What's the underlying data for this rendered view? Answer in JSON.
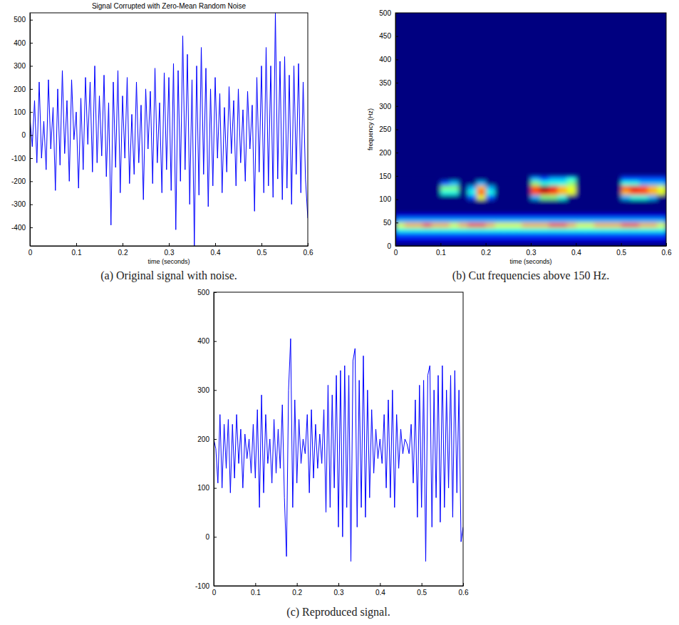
{
  "chart_data": [
    {
      "type": "line",
      "title": "Signal Corrupted with Zero-Mean Random Noise",
      "x_label": "time (seconds)",
      "caption": "(a) Original signal with noise.",
      "color": "#0000ff",
      "grid": false,
      "xlim": [
        0,
        0.6
      ],
      "ylim": [
        -480,
        530
      ],
      "xticks": [
        0,
        0.1,
        0.2,
        0.3,
        0.4,
        0.5,
        0.6
      ],
      "yticks": [
        -400,
        -300,
        -200,
        -100,
        0,
        100,
        200,
        300,
        400,
        500
      ],
      "x": [
        0,
        0.005,
        0.01,
        0.015,
        0.02,
        0.025,
        0.03,
        0.035,
        0.04,
        0.045,
        0.05,
        0.055,
        0.06,
        0.065,
        0.07,
        0.075,
        0.08,
        0.085,
        0.09,
        0.095,
        0.1,
        0.105,
        0.11,
        0.115,
        0.12,
        0.125,
        0.13,
        0.135,
        0.14,
        0.145,
        0.15,
        0.155,
        0.16,
        0.165,
        0.17,
        0.175,
        0.18,
        0.185,
        0.19,
        0.195,
        0.2,
        0.205,
        0.21,
        0.215,
        0.22,
        0.225,
        0.23,
        0.235,
        0.24,
        0.245,
        0.25,
        0.255,
        0.26,
        0.265,
        0.27,
        0.275,
        0.28,
        0.285,
        0.29,
        0.295,
        0.3,
        0.305,
        0.31,
        0.315,
        0.32,
        0.325,
        0.33,
        0.335,
        0.34,
        0.345,
        0.35,
        0.355,
        0.36,
        0.365,
        0.37,
        0.375,
        0.38,
        0.385,
        0.39,
        0.395,
        0.4,
        0.405,
        0.41,
        0.415,
        0.42,
        0.425,
        0.43,
        0.435,
        0.44,
        0.445,
        0.45,
        0.455,
        0.46,
        0.465,
        0.47,
        0.475,
        0.48,
        0.485,
        0.49,
        0.495,
        0.5,
        0.505,
        0.51,
        0.515,
        0.52,
        0.525,
        0.53,
        0.535,
        0.54,
        0.545,
        0.55,
        0.555,
        0.56,
        0.565,
        0.57,
        0.575,
        0.58,
        0.585,
        0.59,
        0.595,
        0.6
      ],
      "values": [
        80,
        -50,
        150,
        -120,
        230,
        -100,
        60,
        -150,
        240,
        -60,
        120,
        -240,
        200,
        -130,
        280,
        -80,
        150,
        -200,
        240,
        -20,
        100,
        -230,
        160,
        -150,
        250,
        -40,
        230,
        -160,
        300,
        -120,
        170,
        -90,
        260,
        -180,
        140,
        -390,
        230,
        -140,
        280,
        -250,
        170,
        -100,
        250,
        -210,
        90,
        -170,
        230,
        -120,
        130,
        -280,
        200,
        -60,
        190,
        -210,
        290,
        -120,
        140,
        -250,
        270,
        -150,
        250,
        -240,
        310,
        -410,
        280,
        -200,
        430,
        -150,
        350,
        -300,
        240,
        -480,
        300,
        -260,
        380,
        -170,
        290,
        -310,
        200,
        -220,
        250,
        -100,
        180,
        -250,
        120,
        -160,
        210,
        -80,
        150,
        -220,
        200,
        -120,
        110,
        -200,
        190,
        -60,
        130,
        -330,
        250,
        -160,
        300,
        -250,
        380,
        -220,
        300,
        -270,
        530,
        -190,
        320,
        -280,
        340,
        -230,
        260,
        -300,
        300,
        -170,
        310,
        -250,
        230,
        -190,
        -360
      ]
    },
    {
      "type": "heatmap",
      "x_label": "time (seconds)",
      "y_label": "frequency (Hz)",
      "caption": "(b) Cut frequencies above 150 Hz.",
      "grid": false,
      "xlim": [
        0,
        0.6
      ],
      "ylim": [
        0,
        500
      ],
      "xticks": [
        0,
        0.1,
        0.2,
        0.3,
        0.4,
        0.5,
        0.6
      ],
      "yticks": [
        0,
        50,
        100,
        150,
        200,
        250,
        300,
        350,
        400,
        450,
        500
      ],
      "zlim": [
        0,
        10
      ],
      "x_bins": [
        0,
        0.02,
        0.04,
        0.06,
        0.08,
        0.1,
        0.12,
        0.14,
        0.16,
        0.18,
        0.2,
        0.22,
        0.24,
        0.26,
        0.28,
        0.3,
        0.32,
        0.34,
        0.36,
        0.38,
        0.4,
        0.42,
        0.44,
        0.46,
        0.48,
        0.5,
        0.52,
        0.54,
        0.56,
        0.58,
        0.6
      ],
      "y_bins": [
        0,
        10,
        20,
        30,
        40,
        50,
        60,
        70,
        80,
        90,
        100,
        110,
        120,
        130,
        140,
        150
      ],
      "cells": [
        [
          0,
          0,
          0,
          0,
          0,
          0,
          0,
          0,
          0,
          0,
          0,
          0,
          0,
          0,
          0,
          0,
          0,
          0,
          0,
          0,
          0,
          0,
          0,
          0,
          0,
          0,
          0,
          0,
          0,
          0
        ],
        [
          1,
          1,
          1,
          1,
          1,
          1,
          1,
          1,
          1,
          1,
          1,
          1,
          1,
          1,
          1,
          1,
          1,
          1,
          1,
          1,
          1,
          1,
          1,
          1,
          1,
          1,
          1,
          1,
          1,
          1
        ],
        [
          2,
          2,
          2,
          2,
          2,
          2,
          2,
          2,
          2,
          2,
          2,
          2,
          2,
          2,
          2,
          2,
          2,
          2,
          2,
          2,
          2,
          2,
          2,
          2,
          2,
          2,
          2,
          2,
          2,
          2
        ],
        [
          4,
          4,
          4,
          4,
          4,
          4,
          4,
          4,
          4,
          4,
          4,
          4,
          4,
          4,
          4,
          4,
          4,
          4,
          4,
          4,
          4,
          4,
          4,
          4,
          4,
          4,
          4,
          4,
          4,
          4
        ],
        [
          6,
          7,
          7,
          8,
          7,
          7,
          6,
          7,
          8,
          8,
          7,
          6,
          6,
          6,
          7,
          7,
          7,
          8,
          8,
          7,
          6,
          6,
          7,
          7,
          7,
          8,
          8,
          7,
          7,
          6
        ],
        [
          3,
          3,
          3,
          3,
          3,
          3,
          3,
          3,
          3,
          3,
          3,
          3,
          3,
          3,
          3,
          3,
          3,
          3,
          3,
          3,
          3,
          3,
          3,
          3,
          3,
          3,
          3,
          3,
          3,
          3
        ],
        [
          1,
          1,
          1,
          1,
          1,
          1,
          1,
          1,
          1,
          1,
          1,
          1,
          1,
          1,
          1,
          1,
          1,
          1,
          1,
          1,
          1,
          1,
          1,
          1,
          1,
          1,
          1,
          1,
          1,
          1
        ],
        [
          0,
          0,
          0,
          0,
          0,
          0,
          0,
          0,
          0,
          0,
          0,
          0,
          0,
          0,
          0,
          0,
          0,
          0,
          0,
          0,
          0,
          0,
          0,
          0,
          0,
          0,
          0,
          0,
          0,
          0
        ],
        [
          0,
          0,
          0,
          0,
          0,
          0,
          0,
          0,
          0,
          0,
          0,
          0,
          0,
          0,
          0,
          0,
          0,
          0,
          0,
          0,
          0,
          0,
          0,
          0,
          0,
          0,
          0,
          0,
          0,
          0
        ],
        [
          0,
          0,
          0,
          0,
          0,
          0,
          0,
          0,
          0,
          0,
          0,
          0,
          0,
          0,
          0,
          0,
          0,
          0,
          0,
          0,
          0,
          0,
          0,
          0,
          0,
          0,
          0,
          0,
          0,
          0
        ],
        [
          0,
          0,
          0,
          0,
          0,
          0,
          0,
          0,
          2,
          6,
          2,
          0,
          0,
          0,
          0,
          3,
          5,
          5,
          4,
          0,
          0,
          0,
          0,
          0,
          0,
          3,
          4,
          4,
          3,
          0
        ],
        [
          0,
          0,
          0,
          0,
          0,
          4,
          4,
          0,
          4,
          8,
          4,
          0,
          0,
          0,
          0,
          8,
          9,
          8,
          7,
          6,
          0,
          0,
          0,
          0,
          0,
          7,
          8,
          8,
          7,
          6
        ],
        [
          0,
          0,
          0,
          0,
          0,
          5,
          5,
          0,
          3,
          7,
          3,
          0,
          0,
          0,
          0,
          8,
          10,
          9,
          7,
          6,
          0,
          0,
          0,
          0,
          0,
          8,
          9,
          8,
          7,
          6
        ],
        [
          0,
          0,
          0,
          0,
          0,
          2,
          3,
          0,
          0,
          3,
          0,
          0,
          0,
          0,
          0,
          5,
          4,
          4,
          4,
          5,
          0,
          0,
          0,
          0,
          0,
          4,
          4,
          3,
          3,
          3
        ],
        [
          0,
          0,
          0,
          0,
          0,
          0,
          0,
          0,
          0,
          0,
          0,
          0,
          0,
          0,
          0,
          3,
          2,
          3,
          3,
          4,
          0,
          0,
          0,
          0,
          0,
          2,
          2,
          2,
          2,
          2
        ]
      ]
    },
    {
      "type": "line",
      "caption": "(c) Reproduced signal.",
      "color": "#0000ff",
      "grid": false,
      "xlim": [
        0,
        0.6
      ],
      "ylim": [
        -100,
        500
      ],
      "xticks": [
        0,
        0.1,
        0.2,
        0.3,
        0.4,
        0.5,
        0.6
      ],
      "yticks": [
        -100,
        0,
        100,
        200,
        300,
        400,
        500
      ],
      "x": [
        0,
        0.005,
        0.01,
        0.015,
        0.02,
        0.025,
        0.03,
        0.035,
        0.04,
        0.045,
        0.05,
        0.055,
        0.06,
        0.065,
        0.07,
        0.075,
        0.08,
        0.085,
        0.09,
        0.095,
        0.1,
        0.105,
        0.11,
        0.115,
        0.12,
        0.125,
        0.13,
        0.135,
        0.14,
        0.145,
        0.15,
        0.155,
        0.16,
        0.165,
        0.17,
        0.175,
        0.18,
        0.185,
        0.19,
        0.195,
        0.2,
        0.205,
        0.21,
        0.215,
        0.22,
        0.225,
        0.23,
        0.235,
        0.24,
        0.245,
        0.25,
        0.255,
        0.26,
        0.265,
        0.27,
        0.275,
        0.28,
        0.285,
        0.29,
        0.295,
        0.3,
        0.305,
        0.31,
        0.315,
        0.32,
        0.325,
        0.33,
        0.335,
        0.34,
        0.345,
        0.35,
        0.355,
        0.36,
        0.365,
        0.37,
        0.375,
        0.38,
        0.385,
        0.39,
        0.395,
        0.4,
        0.405,
        0.41,
        0.415,
        0.42,
        0.425,
        0.43,
        0.435,
        0.44,
        0.445,
        0.45,
        0.455,
        0.46,
        0.465,
        0.47,
        0.475,
        0.48,
        0.485,
        0.49,
        0.495,
        0.5,
        0.505,
        0.51,
        0.515,
        0.52,
        0.525,
        0.53,
        0.535,
        0.54,
        0.545,
        0.55,
        0.555,
        0.56,
        0.565,
        0.57,
        0.575,
        0.58,
        0.585,
        0.59,
        0.595,
        0.6
      ],
      "values": [
        200,
        180,
        110,
        250,
        100,
        230,
        140,
        240,
        90,
        230,
        120,
        250,
        150,
        220,
        100,
        210,
        160,
        200,
        130,
        230,
        120,
        260,
        60,
        290,
        90,
        250,
        150,
        200,
        110,
        240,
        130,
        220,
        140,
        270,
        80,
        -40,
        300,
        405,
        60,
        280,
        110,
        240,
        150,
        200,
        170,
        250,
        90,
        260,
        120,
        230,
        140,
        210,
        150,
        260,
        50,
        310,
        60,
        290,
        100,
        330,
        20,
        340,
        0,
        350,
        60,
        330,
        -50,
        360,
        385,
        20,
        320,
        60,
        370,
        40,
        300,
        80,
        260,
        130,
        220,
        160,
        200,
        150,
        250,
        100,
        280,
        80,
        300,
        60,
        250,
        140,
        220,
        170,
        200,
        190,
        170,
        230,
        110,
        280,
        40,
        310,
        60,
        320,
        -50,
        330,
        350,
        20,
        300,
        80,
        330,
        30,
        350,
        60,
        300,
        100,
        330,
        40,
        340,
        90,
        300,
        -10,
        20
      ]
    }
  ]
}
